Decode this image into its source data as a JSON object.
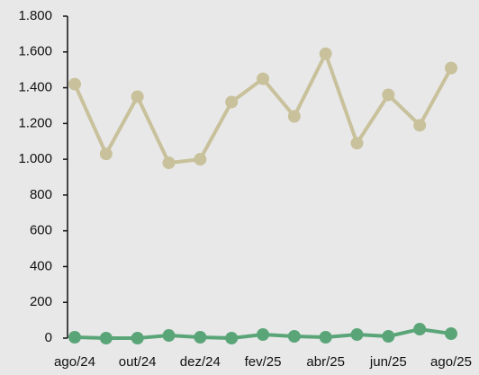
{
  "chart_data": {
    "type": "line",
    "categories": [
      "ago/24",
      null,
      "out/24",
      null,
      "dez/24",
      null,
      "fev/25",
      null,
      "abr/25",
      null,
      "jun/25",
      null,
      "ago/25"
    ],
    "series": [
      {
        "color": "#c8c19b",
        "values": [
          1420,
          1030,
          1350,
          980,
          1000,
          1320,
          1450,
          1240,
          1590,
          1090,
          1360,
          1190,
          1510
        ]
      },
      {
        "color": "#5aa578",
        "values": [
          5,
          0,
          0,
          15,
          5,
          0,
          20,
          10,
          5,
          20,
          10,
          50,
          25
        ]
      }
    ],
    "ylim": [
      0,
      1800
    ],
    "yticks": [
      0,
      200,
      400,
      600,
      800,
      {
        "value": 1000,
        "label": "1.000"
      },
      {
        "value": 1200,
        "label": "1.200"
      },
      {
        "value": 1400,
        "label": "1.400"
      },
      {
        "value": 1600,
        "label": "1.600"
      },
      {
        "value": 1800,
        "label": "1.800"
      }
    ],
    "grid": false
  }
}
